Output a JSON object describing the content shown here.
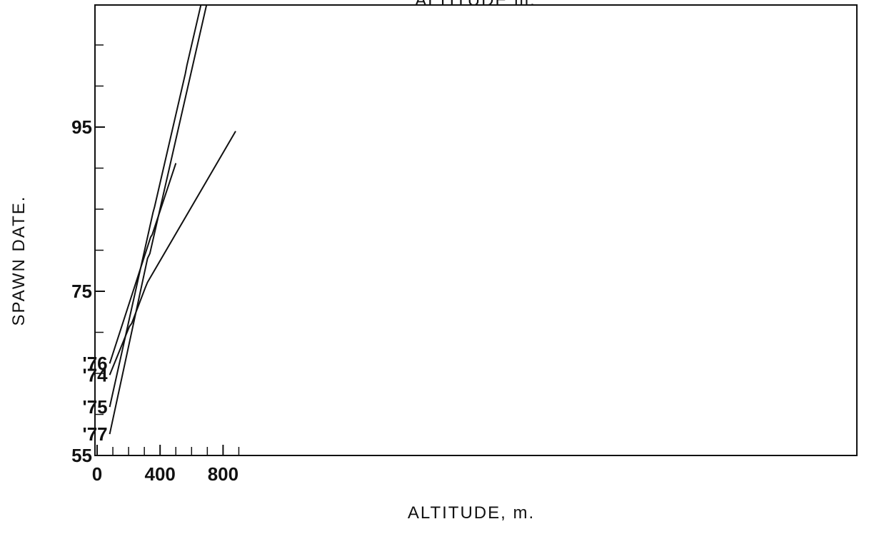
{
  "chart_data": {
    "type": "line",
    "top_label": "ALTITUDE m.",
    "xlabel": "ALTITUDE, m.",
    "ylabel": "SPAWN DATE.",
    "xlim": [
      0,
      960
    ],
    "ylim": [
      55,
      107
    ],
    "x_major_ticks": [
      0,
      400,
      800
    ],
    "x_minor_ticks": [
      100,
      200,
      300,
      500,
      600,
      700,
      900
    ],
    "x_tick_labels": [
      "0",
      "400",
      "800"
    ],
    "y_major_ticks": [
      55,
      75,
      95
    ],
    "y_minor_ticks": [
      60,
      65,
      70,
      80,
      85,
      90,
      100,
      105
    ],
    "y_tick_labels": [
      "55",
      "75",
      "95"
    ],
    "grid": false,
    "series": [
      {
        "name": "'76",
        "color": "#111111",
        "points": [
          [
            80,
            66.2
          ],
          [
            340,
            81.6
          ],
          [
            350,
            81.9
          ],
          [
            500,
            90.6
          ]
        ]
      },
      {
        "name": "'74",
        "color": "#111111",
        "points": [
          [
            80,
            64.8
          ],
          [
            205,
            70.7
          ],
          [
            220,
            71.1
          ],
          [
            305,
            75.4
          ],
          [
            320,
            76.1
          ],
          [
            880,
            94.5
          ]
        ]
      },
      {
        "name": "'75",
        "color": "#111111",
        "points": [
          [
            80,
            60.9
          ],
          [
            355,
            84.6
          ],
          [
            365,
            85.3
          ],
          [
            560,
            101.5
          ],
          [
            570,
            102.5
          ],
          [
            685,
            112.0
          ]
        ]
      },
      {
        "name": "'77",
        "color": "#111111",
        "points": [
          [
            80,
            57.6
          ],
          [
            320,
            79.0
          ],
          [
            335,
            79.6
          ],
          [
            720,
            112.0
          ]
        ]
      }
    ]
  }
}
